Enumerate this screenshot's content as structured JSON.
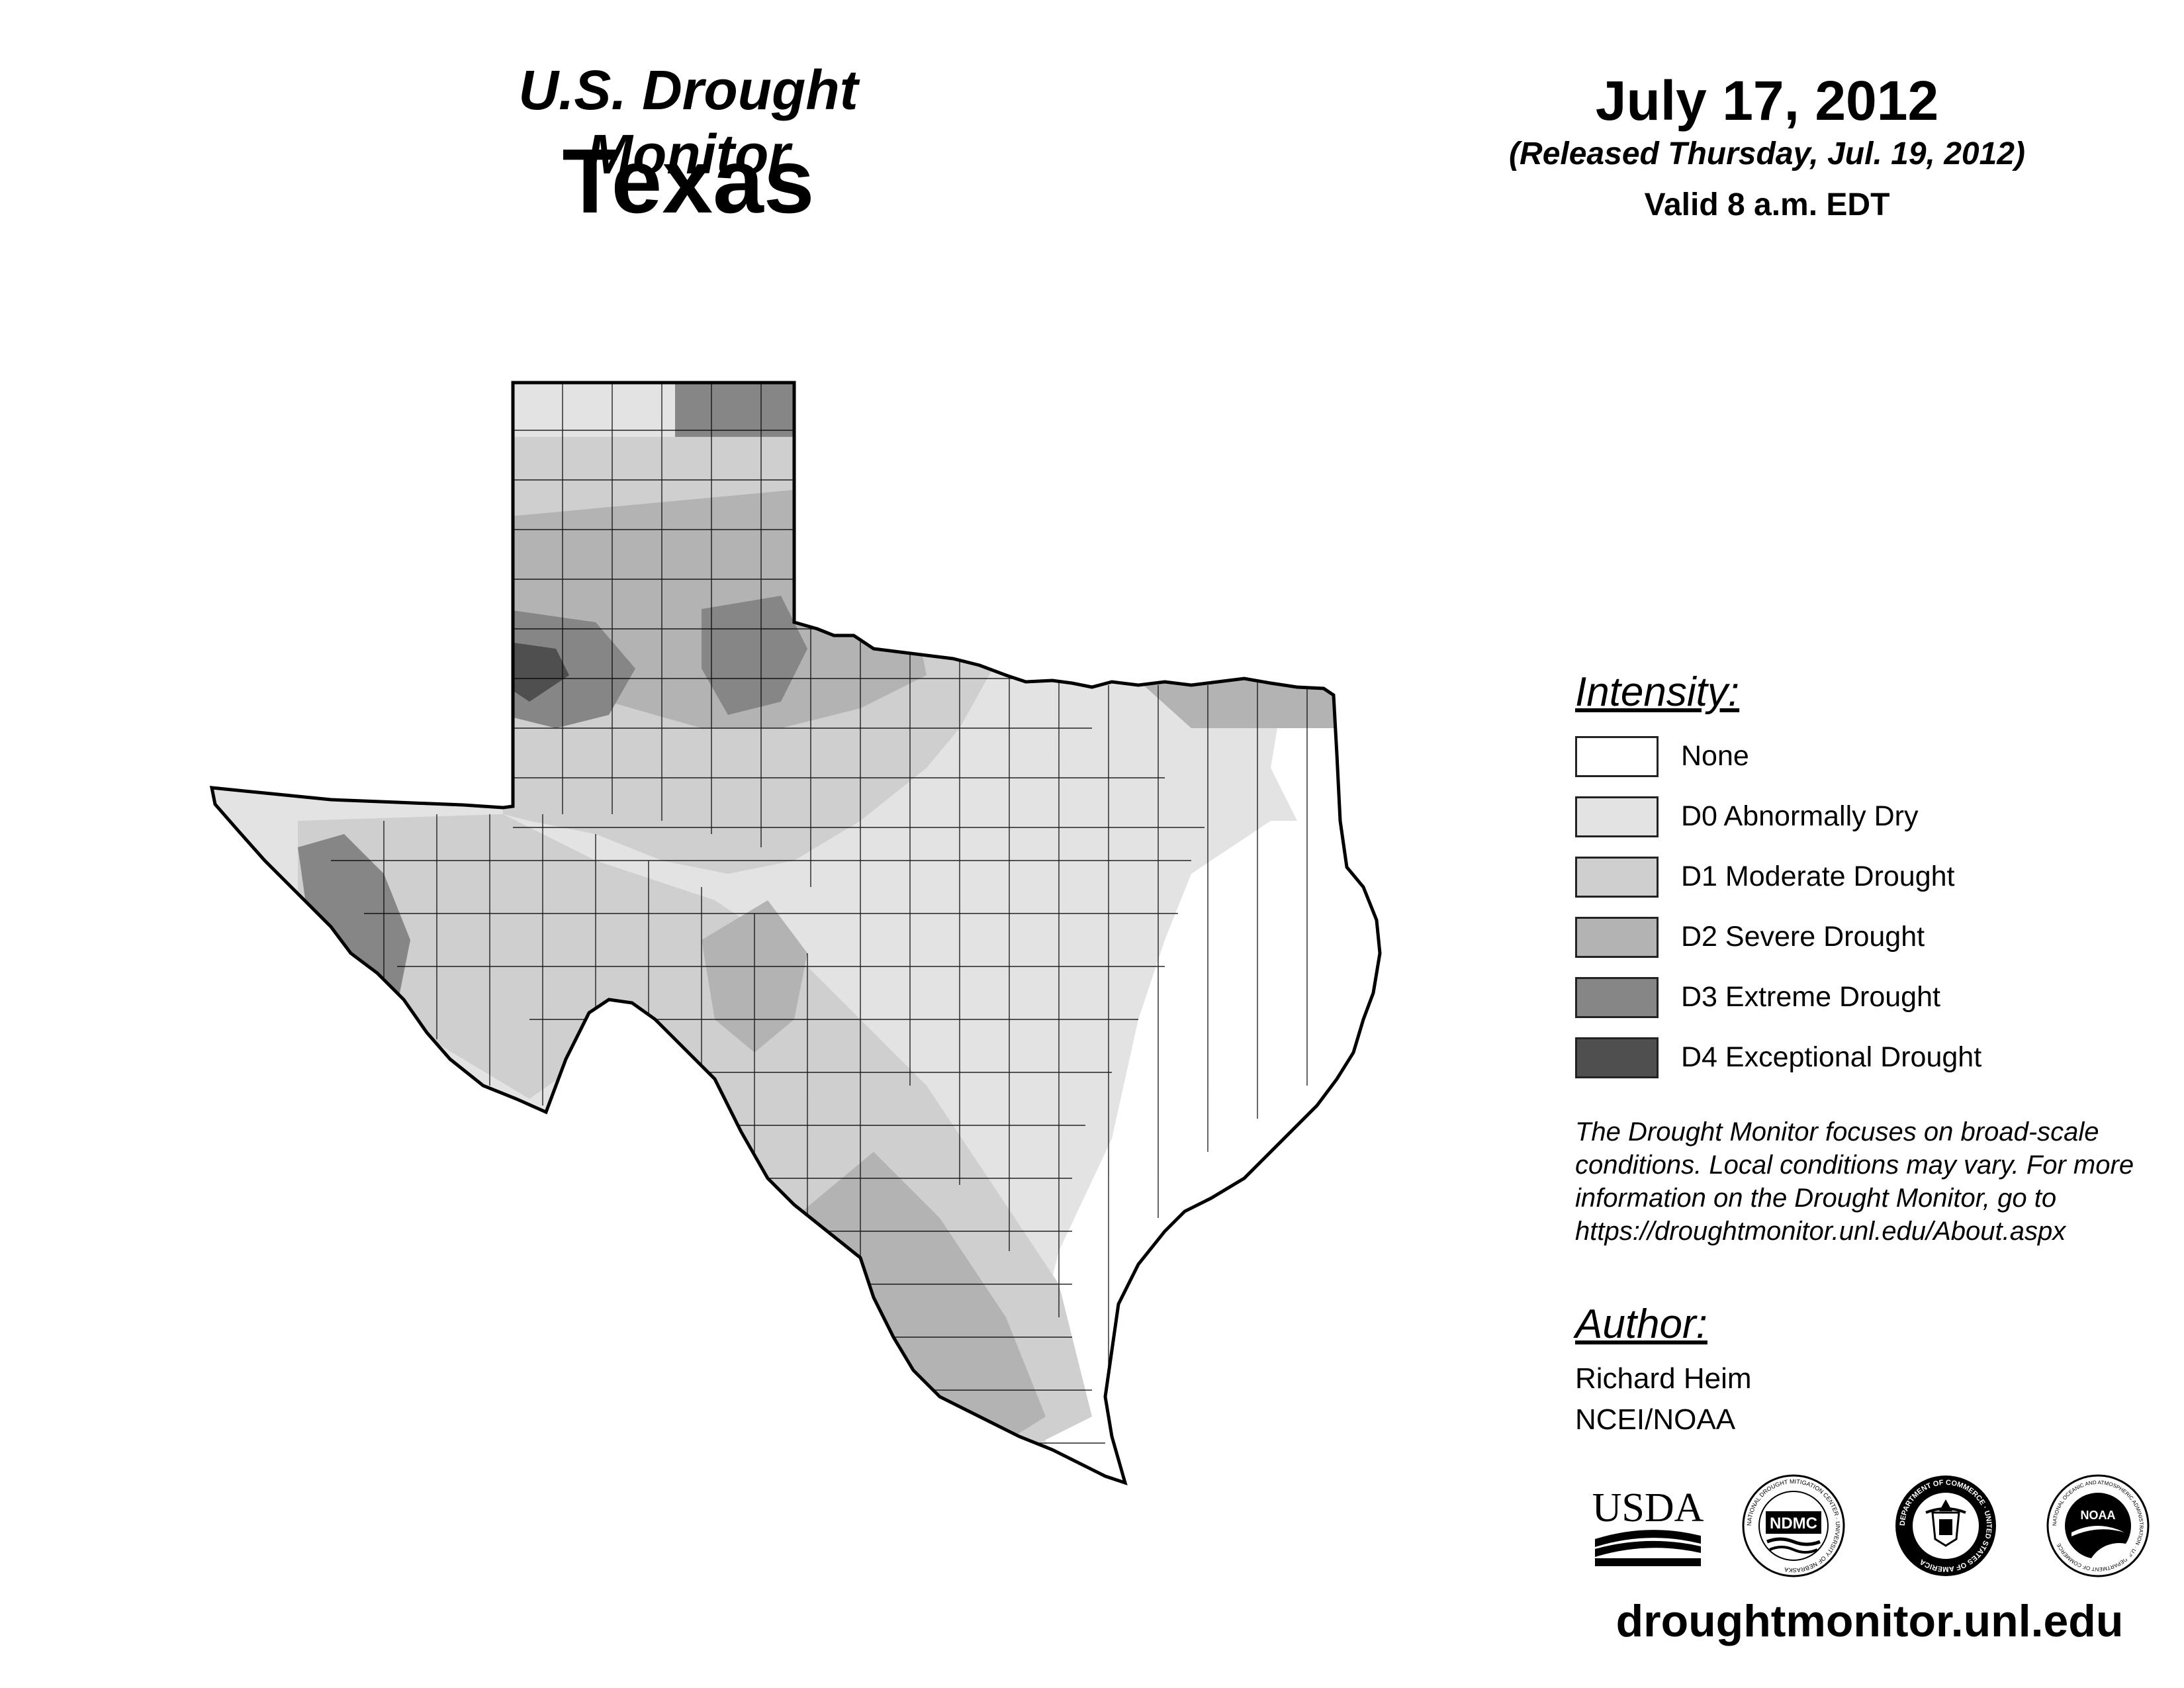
{
  "header": {
    "title": "U.S. Drought Monitor",
    "state": "Texas",
    "date": "July 17, 2012",
    "released": "(Released Thursday, Jul. 19, 2012)",
    "valid": "Valid 8 a.m. EDT"
  },
  "legend": {
    "heading": "Intensity:",
    "items": [
      {
        "label": "None",
        "color": "#ffffff"
      },
      {
        "label": "D0 Abnormally Dry",
        "color": "#e3e3e3"
      },
      {
        "label": "D1 Moderate Drought",
        "color": "#cfcfcf"
      },
      {
        "label": "D2 Severe Drought",
        "color": "#b3b3b3"
      },
      {
        "label": "D3 Extreme Drought",
        "color": "#868686"
      },
      {
        "label": "D4 Exceptional Drought",
        "color": "#4f4f4f"
      }
    ]
  },
  "disclaimer": {
    "lines": [
      "The Drought Monitor focuses on broad-scale",
      "conditions. Local conditions may vary. For more",
      "information on the Drought Monitor, go to",
      "https://droughtmonitor.unl.edu/About.aspx"
    ]
  },
  "author": {
    "heading": "Author:",
    "name": "Richard Heim",
    "org": "NCEI/NOAA"
  },
  "logos": {
    "usda": "USDA",
    "ndmc": "NDMC",
    "ndmc_ring": "NATIONAL DROUGHT MITIGATION CENTER · UNIVERSITY OF NEBRASKA",
    "doc_ring": "DEPARTMENT OF COMMERCE · UNITED STATES OF AMERICA",
    "noaa": "NOAA",
    "noaa_ring": "NATIONAL OCEANIC AND ATMOSPHERIC ADMINISTRATION · U.S. DEPARTMENT OF COMMERCE"
  },
  "footer": {
    "url": "droughtmonitor.unl.edu"
  }
}
